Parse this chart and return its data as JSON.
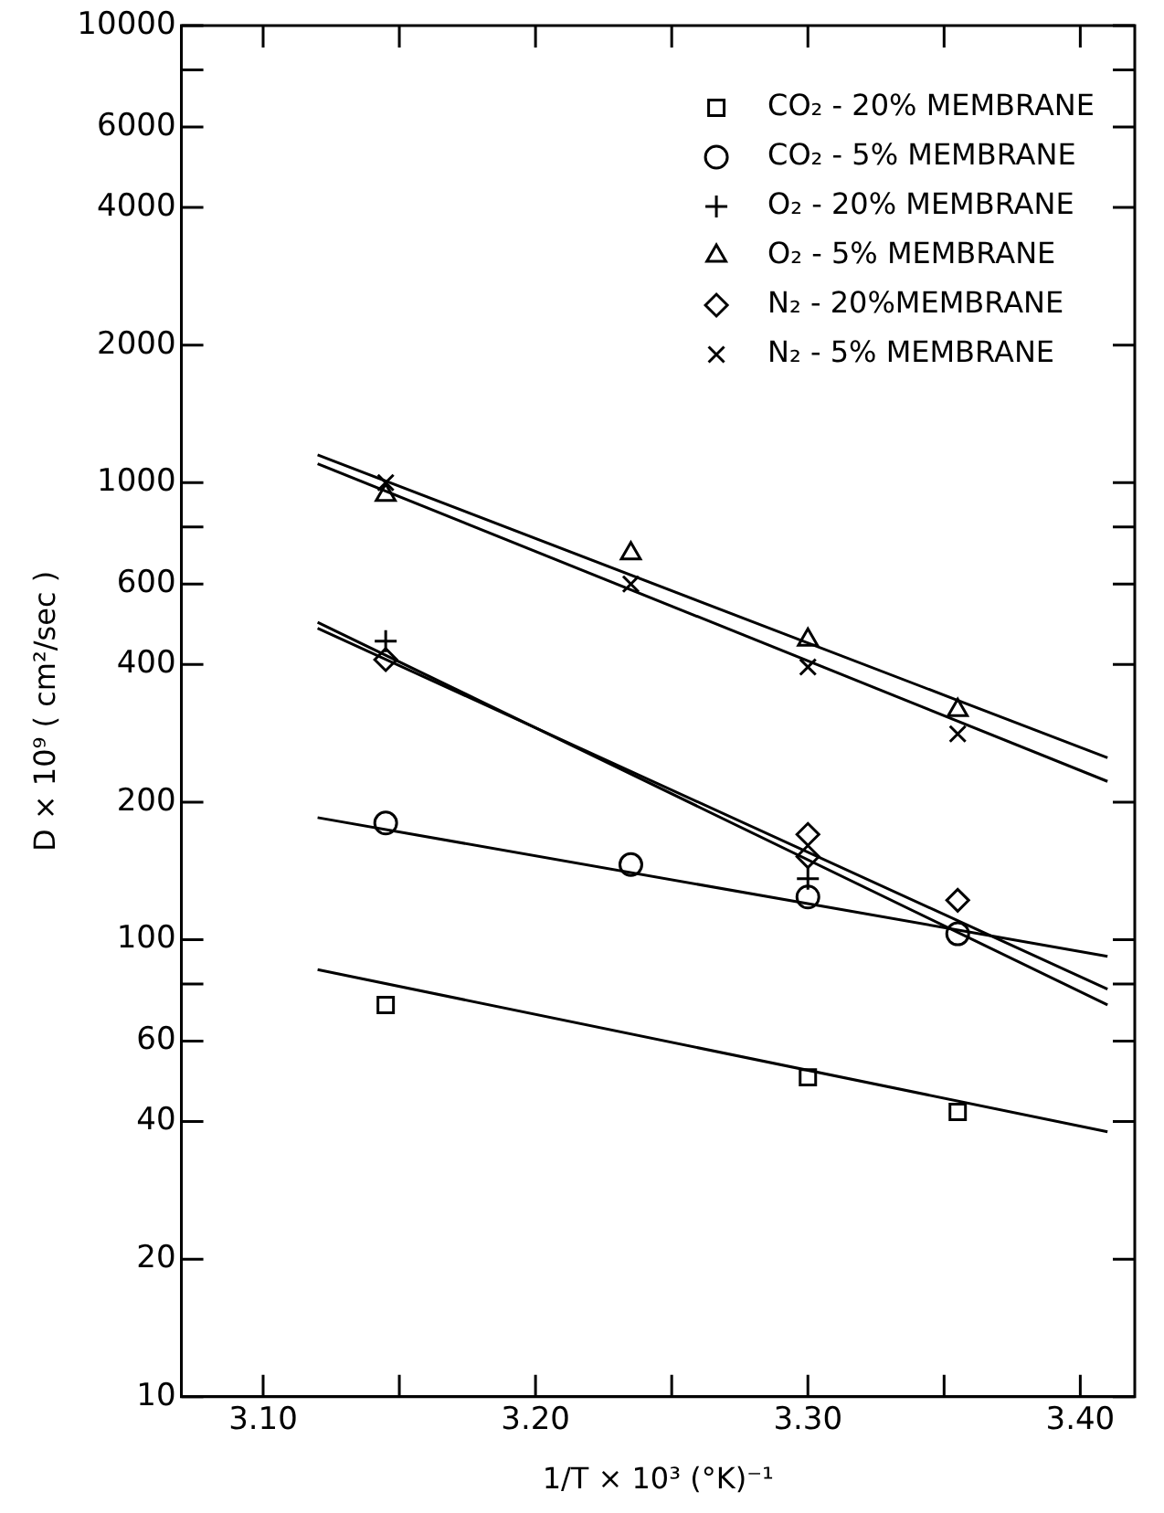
{
  "chart_data": {
    "type": "scatter",
    "xlabel": "1/T × 10³ (°K)⁻¹",
    "ylabel": "D × 10⁹ ( cm²/sec )",
    "log": "y",
    "xlim": [
      3.07,
      3.42
    ],
    "xticks": [
      {
        "value": 3.1,
        "label": "3.10"
      },
      {
        "value": 3.15,
        "label": null
      },
      {
        "value": 3.2,
        "label": "3.20"
      },
      {
        "value": 3.25,
        "label": null
      },
      {
        "value": 3.3,
        "label": "3.30"
      },
      {
        "value": 3.35,
        "label": null
      },
      {
        "value": 3.4,
        "label": "3.40"
      }
    ],
    "ylim": [
      10,
      10000
    ],
    "yticks": [
      10,
      20,
      40,
      60,
      {
        "value": 80,
        "label": null
      },
      100,
      200,
      400,
      600,
      {
        "value": 800,
        "label": null
      },
      1000,
      2000,
      4000,
      6000,
      {
        "value": 8000,
        "label": null
      },
      10000
    ],
    "grid": false,
    "legend": "top right",
    "series": [
      {
        "name": "CO₂ - 20% MEMBRANE",
        "color": "#000000",
        "marker": "square",
        "x": [
          3.145,
          3.3,
          3.355
        ],
        "values": [
          72,
          50,
          42
        ]
      },
      {
        "name": "CO₂ - 5% MEMBRANE",
        "color": "#000000",
        "marker": "circle",
        "x": [
          3.145,
          3.235,
          3.3,
          3.355
        ],
        "values": [
          180,
          146,
          124,
          103
        ]
      },
      {
        "name": "O₂ - 20% MEMBRANE",
        "color": "#000000",
        "marker": "plus",
        "x": [
          3.145,
          3.3
        ],
        "values": [
          450,
          136
        ]
      },
      {
        "name": "O₂ - 5% MEMBRANE",
        "color": "#000000",
        "marker": "triangle",
        "x": [
          3.145,
          3.235,
          3.3,
          3.355
        ],
        "values": [
          940,
          700,
          453,
          318
        ]
      },
      {
        "name": "N₂ - 20%MEMBRANE",
        "color": "#000000",
        "marker": "diamond",
        "x": [
          3.145,
          3.3,
          3.3,
          3.355
        ],
        "values": [
          410,
          170,
          152,
          122
        ]
      },
      {
        "name": "N₂ - 5% MEMBRANE",
        "color": "#000000",
        "marker": "cross",
        "x": [
          3.145,
          3.235,
          3.3,
          3.355
        ],
        "values": [
          1000,
          600,
          395,
          282
        ]
      },
      {
        "type": "line",
        "color": "#000000",
        "marker": "none",
        "x": [
          3.12,
          3.41
        ],
        "values": [
          86,
          38
        ]
      },
      {
        "type": "line",
        "color": "#000000",
        "marker": "none",
        "x": [
          3.12,
          3.41
        ],
        "values": [
          185,
          92
        ]
      },
      {
        "type": "line",
        "color": "#000000",
        "marker": "none",
        "x": [
          3.12,
          3.41
        ],
        "values": [
          495,
          72
        ]
      },
      {
        "type": "line",
        "color": "#000000",
        "marker": "none",
        "x": [
          3.12,
          3.41
        ],
        "values": [
          480,
          78
        ]
      },
      {
        "type": "line",
        "color": "#000000",
        "marker": "none",
        "x": [
          3.12,
          3.41
        ],
        "values": [
          1150,
          250
        ]
      },
      {
        "type": "line",
        "color": "#000000",
        "marker": "none",
        "x": [
          3.12,
          3.41
        ],
        "values": [
          1100,
          222
        ]
      }
    ]
  }
}
